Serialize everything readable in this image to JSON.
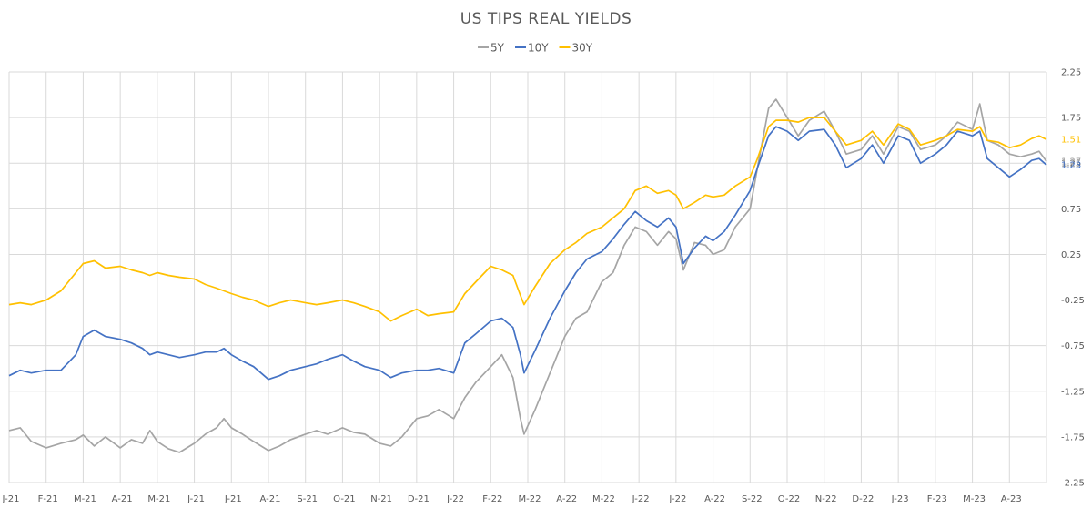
{
  "chart_data": {
    "type": "line",
    "title": "US TIPS REAL YIELDS",
    "xlabel": "",
    "ylabel": "",
    "ylim": [
      -2.25,
      2.25
    ],
    "yticks": [
      "2.25",
      "1.75",
      "1.25",
      "0.75",
      "0.25",
      "-0.25",
      "-0.75",
      "-1.25",
      "-1.75",
      "-2.25"
    ],
    "x_tick_labels": [
      "J-21",
      "F-21",
      "M-21",
      "A-21",
      "M-21",
      "J-21",
      "J-21",
      "A-21",
      "S-21",
      "O-21",
      "N-21",
      "D-21",
      "J-22",
      "F-22",
      "M-22",
      "A-22",
      "M-22",
      "J-22",
      "J-22",
      "A-22",
      "S-22",
      "O-22",
      "N-22",
      "D-22",
      "J-23",
      "F-23",
      "M-23",
      "A-23"
    ],
    "grid": "horizontal",
    "legend_position": "top-center",
    "series": [
      {
        "name": "5Y",
        "color": "#a5a5a5",
        "end_label": "1.27",
        "points": [
          [
            0,
            -1.68
          ],
          [
            0.3,
            -1.65
          ],
          [
            0.6,
            -1.8
          ],
          [
            1,
            -1.87
          ],
          [
            1.4,
            -1.82
          ],
          [
            1.8,
            -1.78
          ],
          [
            2,
            -1.73
          ],
          [
            2.3,
            -1.85
          ],
          [
            2.6,
            -1.75
          ],
          [
            3,
            -1.87
          ],
          [
            3.3,
            -1.78
          ],
          [
            3.6,
            -1.82
          ],
          [
            3.8,
            -1.68
          ],
          [
            4,
            -1.8
          ],
          [
            4.3,
            -1.88
          ],
          [
            4.6,
            -1.92
          ],
          [
            5,
            -1.82
          ],
          [
            5.3,
            -1.72
          ],
          [
            5.6,
            -1.65
          ],
          [
            5.8,
            -1.55
          ],
          [
            6,
            -1.65
          ],
          [
            6.3,
            -1.72
          ],
          [
            6.6,
            -1.8
          ],
          [
            7,
            -1.9
          ],
          [
            7.3,
            -1.85
          ],
          [
            7.6,
            -1.78
          ],
          [
            8,
            -1.72
          ],
          [
            8.3,
            -1.68
          ],
          [
            8.6,
            -1.72
          ],
          [
            9,
            -1.65
          ],
          [
            9.3,
            -1.7
          ],
          [
            9.6,
            -1.72
          ],
          [
            10,
            -1.82
          ],
          [
            10.3,
            -1.85
          ],
          [
            10.6,
            -1.75
          ],
          [
            11,
            -1.55
          ],
          [
            11.3,
            -1.52
          ],
          [
            11.6,
            -1.45
          ],
          [
            12,
            -1.55
          ],
          [
            12.3,
            -1.32
          ],
          [
            12.6,
            -1.15
          ],
          [
            13,
            -0.98
          ],
          [
            13.3,
            -0.85
          ],
          [
            13.6,
            -1.1
          ],
          [
            13.8,
            -1.55
          ],
          [
            13.9,
            -1.72
          ],
          [
            14.2,
            -1.45
          ],
          [
            14.6,
            -1.05
          ],
          [
            15,
            -0.65
          ],
          [
            15.3,
            -0.45
          ],
          [
            15.6,
            -0.38
          ],
          [
            16,
            -0.05
          ],
          [
            16.3,
            0.05
          ],
          [
            16.6,
            0.35
          ],
          [
            16.9,
            0.55
          ],
          [
            17.2,
            0.5
          ],
          [
            17.5,
            0.35
          ],
          [
            17.8,
            0.5
          ],
          [
            18,
            0.42
          ],
          [
            18.2,
            0.08
          ],
          [
            18.5,
            0.38
          ],
          [
            18.8,
            0.35
          ],
          [
            19,
            0.25
          ],
          [
            19.3,
            0.3
          ],
          [
            19.6,
            0.55
          ],
          [
            20,
            0.75
          ],
          [
            20.2,
            1.2
          ],
          [
            20.5,
            1.85
          ],
          [
            20.7,
            1.95
          ],
          [
            21,
            1.75
          ],
          [
            21.3,
            1.55
          ],
          [
            21.6,
            1.72
          ],
          [
            22,
            1.82
          ],
          [
            22.3,
            1.6
          ],
          [
            22.6,
            1.35
          ],
          [
            23,
            1.4
          ],
          [
            23.3,
            1.55
          ],
          [
            23.6,
            1.35
          ],
          [
            24,
            1.65
          ],
          [
            24.3,
            1.6
          ],
          [
            24.6,
            1.4
          ],
          [
            25,
            1.45
          ],
          [
            25.3,
            1.55
          ],
          [
            25.6,
            1.7
          ],
          [
            26,
            1.62
          ],
          [
            26.2,
            1.9
          ],
          [
            26.4,
            1.5
          ],
          [
            26.7,
            1.45
          ],
          [
            27,
            1.35
          ],
          [
            27.3,
            1.32
          ],
          [
            27.6,
            1.35
          ],
          [
            27.8,
            1.38
          ],
          [
            28,
            1.27
          ]
        ]
      },
      {
        "name": "10Y",
        "color": "#4472c4",
        "end_label": "1.23",
        "points": [
          [
            0,
            -1.08
          ],
          [
            0.3,
            -1.02
          ],
          [
            0.6,
            -1.05
          ],
          [
            1,
            -1.02
          ],
          [
            1.4,
            -1.02
          ],
          [
            1.8,
            -0.85
          ],
          [
            2,
            -0.65
          ],
          [
            2.3,
            -0.58
          ],
          [
            2.6,
            -0.65
          ],
          [
            3,
            -0.68
          ],
          [
            3.3,
            -0.72
          ],
          [
            3.6,
            -0.78
          ],
          [
            3.8,
            -0.85
          ],
          [
            4,
            -0.82
          ],
          [
            4.3,
            -0.85
          ],
          [
            4.6,
            -0.88
          ],
          [
            5,
            -0.85
          ],
          [
            5.3,
            -0.82
          ],
          [
            5.6,
            -0.82
          ],
          [
            5.8,
            -0.78
          ],
          [
            6,
            -0.85
          ],
          [
            6.3,
            -0.92
          ],
          [
            6.6,
            -0.98
          ],
          [
            7,
            -1.12
          ],
          [
            7.3,
            -1.08
          ],
          [
            7.6,
            -1.02
          ],
          [
            8,
            -0.98
          ],
          [
            8.3,
            -0.95
          ],
          [
            8.6,
            -0.9
          ],
          [
            9,
            -0.85
          ],
          [
            9.3,
            -0.92
          ],
          [
            9.6,
            -0.98
          ],
          [
            10,
            -1.02
          ],
          [
            10.3,
            -1.1
          ],
          [
            10.6,
            -1.05
          ],
          [
            11,
            -1.02
          ],
          [
            11.3,
            -1.02
          ],
          [
            11.6,
            -1.0
          ],
          [
            12,
            -1.05
          ],
          [
            12.3,
            -0.72
          ],
          [
            12.6,
            -0.62
          ],
          [
            13,
            -0.48
          ],
          [
            13.3,
            -0.45
          ],
          [
            13.6,
            -0.55
          ],
          [
            13.8,
            -0.85
          ],
          [
            13.9,
            -1.05
          ],
          [
            14.2,
            -0.8
          ],
          [
            14.6,
            -0.45
          ],
          [
            15,
            -0.15
          ],
          [
            15.3,
            0.05
          ],
          [
            15.6,
            0.2
          ],
          [
            16,
            0.28
          ],
          [
            16.3,
            0.42
          ],
          [
            16.6,
            0.58
          ],
          [
            16.9,
            0.72
          ],
          [
            17.2,
            0.62
          ],
          [
            17.5,
            0.55
          ],
          [
            17.8,
            0.65
          ],
          [
            18,
            0.55
          ],
          [
            18.2,
            0.15
          ],
          [
            18.5,
            0.32
          ],
          [
            18.8,
            0.45
          ],
          [
            19,
            0.4
          ],
          [
            19.3,
            0.5
          ],
          [
            19.6,
            0.68
          ],
          [
            20,
            0.95
          ],
          [
            20.2,
            1.2
          ],
          [
            20.5,
            1.55
          ],
          [
            20.7,
            1.65
          ],
          [
            21,
            1.6
          ],
          [
            21.3,
            1.5
          ],
          [
            21.6,
            1.6
          ],
          [
            22,
            1.62
          ],
          [
            22.3,
            1.45
          ],
          [
            22.6,
            1.2
          ],
          [
            23,
            1.3
          ],
          [
            23.3,
            1.45
          ],
          [
            23.6,
            1.25
          ],
          [
            24,
            1.55
          ],
          [
            24.3,
            1.5
          ],
          [
            24.6,
            1.25
          ],
          [
            25,
            1.35
          ],
          [
            25.3,
            1.45
          ],
          [
            25.6,
            1.6
          ],
          [
            26,
            1.55
          ],
          [
            26.2,
            1.6
          ],
          [
            26.4,
            1.3
          ],
          [
            26.7,
            1.2
          ],
          [
            27,
            1.1
          ],
          [
            27.3,
            1.18
          ],
          [
            27.6,
            1.28
          ],
          [
            27.8,
            1.3
          ],
          [
            28,
            1.23
          ]
        ]
      },
      {
        "name": "30Y",
        "color": "#ffc000",
        "end_label": "1.51",
        "points": [
          [
            0,
            -0.3
          ],
          [
            0.3,
            -0.28
          ],
          [
            0.6,
            -0.3
          ],
          [
            1,
            -0.25
          ],
          [
            1.4,
            -0.15
          ],
          [
            1.8,
            0.05
          ],
          [
            2,
            0.15
          ],
          [
            2.3,
            0.18
          ],
          [
            2.6,
            0.1
          ],
          [
            3,
            0.12
          ],
          [
            3.3,
            0.08
          ],
          [
            3.6,
            0.05
          ],
          [
            3.8,
            0.02
          ],
          [
            4,
            0.05
          ],
          [
            4.3,
            0.02
          ],
          [
            4.6,
            0.0
          ],
          [
            5,
            -0.02
          ],
          [
            5.3,
            -0.08
          ],
          [
            5.6,
            -0.12
          ],
          [
            5.8,
            -0.15
          ],
          [
            6,
            -0.18
          ],
          [
            6.3,
            -0.22
          ],
          [
            6.6,
            -0.25
          ],
          [
            7,
            -0.32
          ],
          [
            7.3,
            -0.28
          ],
          [
            7.6,
            -0.25
          ],
          [
            8,
            -0.28
          ],
          [
            8.3,
            -0.3
          ],
          [
            8.6,
            -0.28
          ],
          [
            9,
            -0.25
          ],
          [
            9.3,
            -0.28
          ],
          [
            9.6,
            -0.32
          ],
          [
            10,
            -0.38
          ],
          [
            10.3,
            -0.48
          ],
          [
            10.6,
            -0.42
          ],
          [
            11,
            -0.35
          ],
          [
            11.3,
            -0.42
          ],
          [
            11.6,
            -0.4
          ],
          [
            12,
            -0.38
          ],
          [
            12.3,
            -0.18
          ],
          [
            12.6,
            -0.05
          ],
          [
            13,
            0.12
          ],
          [
            13.3,
            0.08
          ],
          [
            13.6,
            0.02
          ],
          [
            13.8,
            -0.2
          ],
          [
            13.9,
            -0.3
          ],
          [
            14.2,
            -0.1
          ],
          [
            14.6,
            0.15
          ],
          [
            15,
            0.3
          ],
          [
            15.3,
            0.38
          ],
          [
            15.6,
            0.48
          ],
          [
            16,
            0.55
          ],
          [
            16.3,
            0.65
          ],
          [
            16.6,
            0.75
          ],
          [
            16.9,
            0.95
          ],
          [
            17.2,
            1.0
          ],
          [
            17.5,
            0.92
          ],
          [
            17.8,
            0.95
          ],
          [
            18,
            0.9
          ],
          [
            18.2,
            0.75
          ],
          [
            18.5,
            0.82
          ],
          [
            18.8,
            0.9
          ],
          [
            19,
            0.88
          ],
          [
            19.3,
            0.9
          ],
          [
            19.6,
            1.0
          ],
          [
            20,
            1.1
          ],
          [
            20.2,
            1.3
          ],
          [
            20.5,
            1.65
          ],
          [
            20.7,
            1.72
          ],
          [
            21,
            1.72
          ],
          [
            21.3,
            1.7
          ],
          [
            21.6,
            1.75
          ],
          [
            22,
            1.75
          ],
          [
            22.3,
            1.6
          ],
          [
            22.6,
            1.45
          ],
          [
            23,
            1.5
          ],
          [
            23.3,
            1.6
          ],
          [
            23.6,
            1.45
          ],
          [
            24,
            1.68
          ],
          [
            24.3,
            1.62
          ],
          [
            24.6,
            1.45
          ],
          [
            25,
            1.5
          ],
          [
            25.3,
            1.55
          ],
          [
            25.6,
            1.62
          ],
          [
            26,
            1.6
          ],
          [
            26.2,
            1.65
          ],
          [
            26.4,
            1.5
          ],
          [
            26.7,
            1.48
          ],
          [
            27,
            1.42
          ],
          [
            27.3,
            1.45
          ],
          [
            27.6,
            1.52
          ],
          [
            27.8,
            1.55
          ],
          [
            28,
            1.51
          ]
        ]
      }
    ]
  }
}
